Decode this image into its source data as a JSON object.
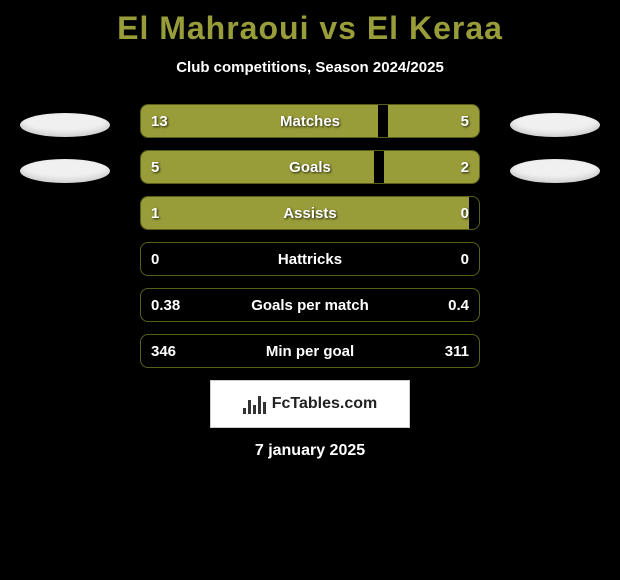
{
  "title": "El Mahraoui vs El Keraa",
  "subtitle": "Club competitions, Season 2024/2025",
  "footer_date": "7 january 2025",
  "logo_text": "FcTables.com",
  "colors": {
    "accent": "#999d39",
    "background": "#000000",
    "text": "#ffffff",
    "border": "#5a5f17"
  },
  "rows": [
    {
      "label": "Matches",
      "left_value": "13",
      "right_value": "5",
      "left_fill_pct": 70,
      "right_fill_pct": 27,
      "show_left_oval": true,
      "show_right_oval": true
    },
    {
      "label": "Goals",
      "left_value": "5",
      "right_value": "2",
      "left_fill_pct": 69,
      "right_fill_pct": 28,
      "show_left_oval": true,
      "show_right_oval": true
    },
    {
      "label": "Assists",
      "left_value": "1",
      "right_value": "0",
      "left_fill_pct": 97,
      "right_fill_pct": 0,
      "show_left_oval": false,
      "show_right_oval": false
    },
    {
      "label": "Hattricks",
      "left_value": "0",
      "right_value": "0",
      "left_fill_pct": 0,
      "right_fill_pct": 0,
      "show_left_oval": false,
      "show_right_oval": false
    },
    {
      "label": "Goals per match",
      "left_value": "0.38",
      "right_value": "0.4",
      "left_fill_pct": 0,
      "right_fill_pct": 0,
      "show_left_oval": false,
      "show_right_oval": false
    },
    {
      "label": "Min per goal",
      "left_value": "346",
      "right_value": "311",
      "left_fill_pct": 0,
      "right_fill_pct": 0,
      "show_left_oval": false,
      "show_right_oval": false
    }
  ]
}
